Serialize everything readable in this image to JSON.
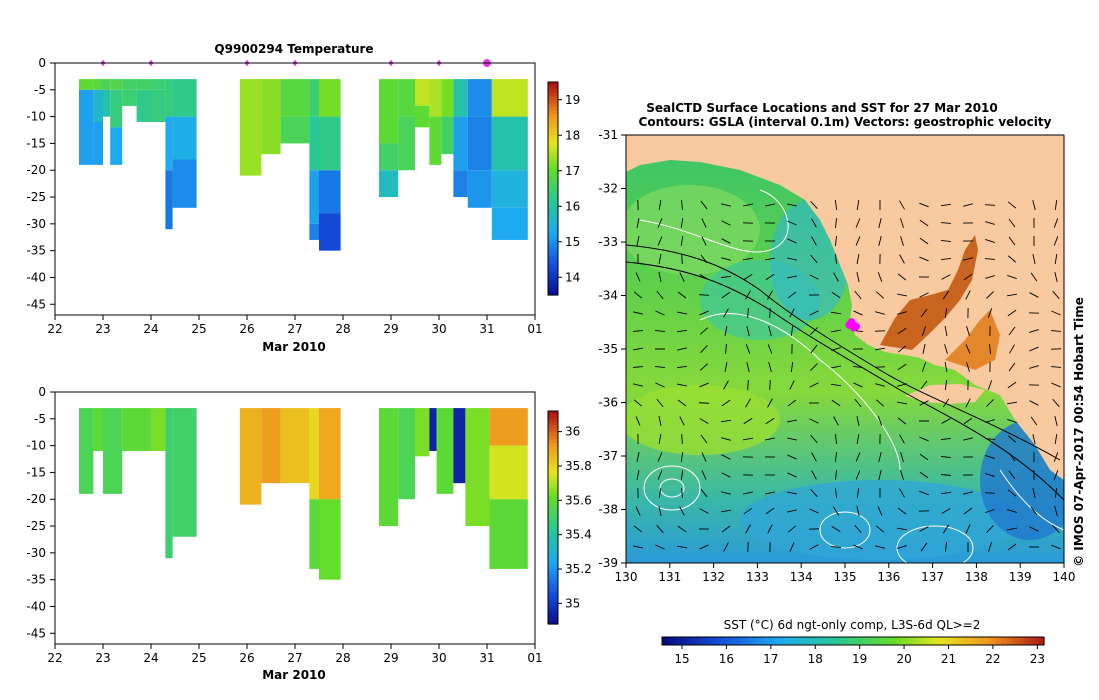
{
  "chart_data": [
    {
      "type": "heatmap",
      "title": "Q9900294  Temperature",
      "xlabel": "Mar 2010",
      "ylabel": "",
      "x_ticks": [
        "22",
        "23",
        "24",
        "25",
        "26",
        "27",
        "28",
        "29",
        "30",
        "31",
        "01"
      ],
      "y_ticks": [
        "0",
        "-5",
        "-10",
        "-15",
        "-20",
        "-25",
        "-30",
        "-35",
        "-40",
        "-45"
      ],
      "xlim": [
        22,
        32
      ],
      "ylim": [
        -47,
        0
      ],
      "colorbar_ticks": [
        "14",
        "15",
        "16",
        "17",
        "18",
        "19"
      ],
      "colorbar_range": [
        13.5,
        19.5
      ],
      "profile_markers": [
        23.0,
        24.0,
        26.0,
        27.0,
        29.0,
        30.0,
        31.0
      ],
      "profiles": [
        {
          "x": [
            22.5,
            22.8
          ],
          "segments": [
            [
              -3,
              -5,
              17.0
            ],
            [
              -5,
              -19,
              15.2
            ]
          ]
        },
        {
          "x": [
            22.8,
            23.0
          ],
          "segments": [
            [
              -3,
              -5,
              16.9
            ],
            [
              -5,
              -11,
              15.7
            ],
            [
              -11,
              -19,
              15.2
            ]
          ]
        },
        {
          "x": [
            23.0,
            23.15
          ],
          "segments": [
            [
              -3,
              -5,
              16.7
            ],
            [
              -5,
              -10,
              16.0
            ]
          ]
        },
        {
          "x": [
            23.15,
            23.4
          ],
          "segments": [
            [
              -3,
              -5,
              16.8
            ],
            [
              -5,
              -12,
              16.4
            ],
            [
              -12,
              -19,
              15.3
            ]
          ]
        },
        {
          "x": [
            23.4,
            23.7
          ],
          "segments": [
            [
              -3,
              -5,
              16.6
            ],
            [
              -5,
              -8,
              16.5
            ]
          ]
        },
        {
          "x": [
            23.7,
            24.0
          ],
          "segments": [
            [
              -3,
              -5,
              16.6
            ],
            [
              -5,
              -11,
              16.3
            ]
          ]
        },
        {
          "x": [
            24.0,
            24.3
          ],
          "segments": [
            [
              -3,
              -5,
              16.5
            ],
            [
              -5,
              -11,
              16.4
            ]
          ]
        },
        {
          "x": [
            24.3,
            24.45
          ],
          "segments": [
            [
              -3,
              -10,
              16.4
            ],
            [
              -10,
              -20,
              15.3
            ],
            [
              -20,
              -31,
              14.8
            ]
          ]
        },
        {
          "x": [
            24.45,
            24.95
          ],
          "segments": [
            [
              -3,
              -10,
              16.3
            ],
            [
              -10,
              -18,
              15.4
            ],
            [
              -18,
              -27,
              15.0
            ]
          ]
        },
        {
          "x": [
            25.85,
            26.3
          ],
          "segments": [
            [
              -3,
              -21,
              17.4
            ]
          ]
        },
        {
          "x": [
            26.3,
            26.7
          ],
          "segments": [
            [
              -3,
              -17,
              17.3
            ]
          ]
        },
        {
          "x": [
            26.7,
            27.3
          ],
          "segments": [
            [
              -3,
              -10,
              16.9
            ],
            [
              -10,
              -15,
              16.7
            ]
          ]
        },
        {
          "x": [
            27.3,
            27.5
          ],
          "segments": [
            [
              -3,
              -10,
              16.5
            ],
            [
              -10,
              -20,
              16.2
            ],
            [
              -20,
              -30,
              15.2
            ],
            [
              -30,
              -33,
              14.9
            ]
          ]
        },
        {
          "x": [
            27.5,
            27.95
          ],
          "segments": [
            [
              -3,
              -10,
              17.2
            ],
            [
              -10,
              -20,
              16.3
            ],
            [
              -20,
              -28,
              14.8
            ],
            [
              -28,
              -35,
              14.3
            ]
          ]
        },
        {
          "x": [
            28.75,
            29.15
          ],
          "segments": [
            [
              -3,
              -15,
              17.0
            ],
            [
              -15,
              -20,
              16.6
            ],
            [
              -20,
              -25,
              15.8
            ]
          ]
        },
        {
          "x": [
            29.15,
            29.5
          ],
          "segments": [
            [
              -3,
              -10,
              16.9
            ],
            [
              -10,
              -20,
              16.7
            ]
          ]
        },
        {
          "x": [
            29.5,
            29.8
          ],
          "segments": [
            [
              -3,
              -8,
              17.6
            ],
            [
              -8,
              -12,
              17.0
            ]
          ]
        },
        {
          "x": [
            29.8,
            30.05
          ],
          "segments": [
            [
              -3,
              -10,
              17.5
            ],
            [
              -10,
              -19,
              17.0
            ]
          ]
        },
        {
          "x": [
            30.05,
            30.3
          ],
          "segments": [
            [
              -3,
              -10,
              17.2
            ],
            [
              -10,
              -17,
              16.6
            ]
          ]
        },
        {
          "x": [
            30.3,
            30.6
          ],
          "segments": [
            [
              -3,
              -10,
              16.0
            ],
            [
              -10,
              -20,
              15.2
            ],
            [
              -20,
              -25,
              14.9
            ]
          ]
        },
        {
          "x": [
            30.6,
            31.1
          ],
          "segments": [
            [
              -3,
              -10,
              15.0
            ],
            [
              -10,
              -20,
              14.9
            ],
            [
              -20,
              -27,
              15.1
            ]
          ]
        },
        {
          "x": [
            31.1,
            31.85
          ],
          "segments": [
            [
              -3,
              -10,
              17.6
            ],
            [
              -10,
              -20,
              16.0
            ],
            [
              -20,
              -27,
              15.5
            ],
            [
              -27,
              -33,
              15.3
            ]
          ]
        }
      ]
    },
    {
      "type": "heatmap",
      "title": "",
      "xlabel": "Mar 2010",
      "ylabel": "",
      "x_ticks": [
        "22",
        "23",
        "24",
        "25",
        "26",
        "27",
        "28",
        "29",
        "30",
        "31",
        "01"
      ],
      "y_ticks": [
        "0",
        "-5",
        "-10",
        "-15",
        "-20",
        "-25",
        "-30",
        "-35",
        "-40",
        "-45"
      ],
      "xlim": [
        22,
        32
      ],
      "ylim": [
        -47,
        0
      ],
      "colorbar_ticks": [
        "35",
        "35.2",
        "35.4",
        "35.6",
        "35.8",
        "36"
      ],
      "colorbar_range": [
        34.88,
        36.12
      ],
      "profiles": [
        {
          "x": [
            22.5,
            22.8
          ],
          "segments": [
            [
              -3,
              -19,
              35.55
            ]
          ]
        },
        {
          "x": [
            22.8,
            23.0
          ],
          "segments": [
            [
              -3,
              -11,
              35.6
            ]
          ]
        },
        {
          "x": [
            23.0,
            23.4
          ],
          "segments": [
            [
              -3,
              -19,
              35.55
            ]
          ]
        },
        {
          "x": [
            23.4,
            24.0
          ],
          "segments": [
            [
              -3,
              -11,
              35.6
            ]
          ]
        },
        {
          "x": [
            24.0,
            24.3
          ],
          "segments": [
            [
              -3,
              -11,
              35.65
            ]
          ]
        },
        {
          "x": [
            24.3,
            24.45
          ],
          "segments": [
            [
              -3,
              -31,
              35.5
            ]
          ]
        },
        {
          "x": [
            24.45,
            24.95
          ],
          "segments": [
            [
              -3,
              -27,
              35.52
            ]
          ]
        },
        {
          "x": [
            25.85,
            26.3
          ],
          "segments": [
            [
              -3,
              -21,
              35.88
            ]
          ]
        },
        {
          "x": [
            26.3,
            26.7
          ],
          "segments": [
            [
              -3,
              -17,
              35.92
            ]
          ]
        },
        {
          "x": [
            26.7,
            27.3
          ],
          "segments": [
            [
              -3,
              -17,
              35.85
            ]
          ]
        },
        {
          "x": [
            27.3,
            27.5
          ],
          "segments": [
            [
              -3,
              -20,
              35.8
            ],
            [
              -20,
              -33,
              35.6
            ]
          ]
        },
        {
          "x": [
            27.5,
            27.95
          ],
          "segments": [
            [
              -3,
              -20,
              35.9
            ],
            [
              -20,
              -35,
              35.62
            ]
          ]
        },
        {
          "x": [
            28.75,
            29.15
          ],
          "segments": [
            [
              -3,
              -25,
              35.6
            ]
          ]
        },
        {
          "x": [
            29.15,
            29.5
          ],
          "segments": [
            [
              -3,
              -20,
              35.55
            ]
          ]
        },
        {
          "x": [
            29.5,
            29.8
          ],
          "segments": [
            [
              -3,
              -12,
              35.65
            ]
          ]
        },
        {
          "x": [
            29.8,
            29.95
          ],
          "segments": [
            [
              -3,
              -11,
              34.95
            ]
          ]
        },
        {
          "x": [
            29.95,
            30.3
          ],
          "segments": [
            [
              -3,
              -19,
              35.6
            ]
          ]
        },
        {
          "x": [
            30.3,
            30.55
          ],
          "segments": [
            [
              -3,
              -17,
              34.95
            ]
          ]
        },
        {
          "x": [
            30.55,
            31.05
          ],
          "segments": [
            [
              -3,
              -25,
              35.65
            ]
          ]
        },
        {
          "x": [
            31.05,
            31.85
          ],
          "segments": [
            [
              -3,
              -10,
              35.92
            ],
            [
              -10,
              -20,
              35.75
            ],
            [
              -20,
              -33,
              35.6
            ]
          ]
        }
      ]
    },
    {
      "type": "heatmap",
      "title": "SealCTD Surface Locations and SST for 27 Mar 2010",
      "subtitle": "Contours: GSLA (interval 0.1m) Vectors: geostrophic velocity",
      "xlabel": "",
      "ylabel": "",
      "x_ticks": [
        "130",
        "131",
        "132",
        "133",
        "134",
        "135",
        "136",
        "137",
        "138",
        "139",
        "140"
      ],
      "y_ticks": [
        "-31",
        "-32",
        "-33",
        "-34",
        "-35",
        "-36",
        "-37",
        "-38",
        "-39"
      ],
      "xlim": [
        130,
        140
      ],
      "ylim": [
        -39,
        -31
      ],
      "colorbar_label": "SST (°C) 6d ngt-only comp, L3S-6d QL>=2",
      "colorbar_ticks": [
        "15",
        "16",
        "17",
        "18",
        "19",
        "20",
        "21",
        "22",
        "23"
      ],
      "colorbar_range": [
        14.55,
        23.15
      ],
      "seal_locations": [
        [
          135.1,
          -34.55
        ],
        [
          135.2,
          -34.6
        ],
        [
          135.15,
          -34.5
        ],
        [
          135.25,
          -34.58
        ]
      ],
      "side_text": "© IMOS 07-Apr-2017 00:54 Hobart Time"
    }
  ],
  "colors": {
    "land": "#f9c9a0",
    "seal_marker": "#ff00ff"
  }
}
